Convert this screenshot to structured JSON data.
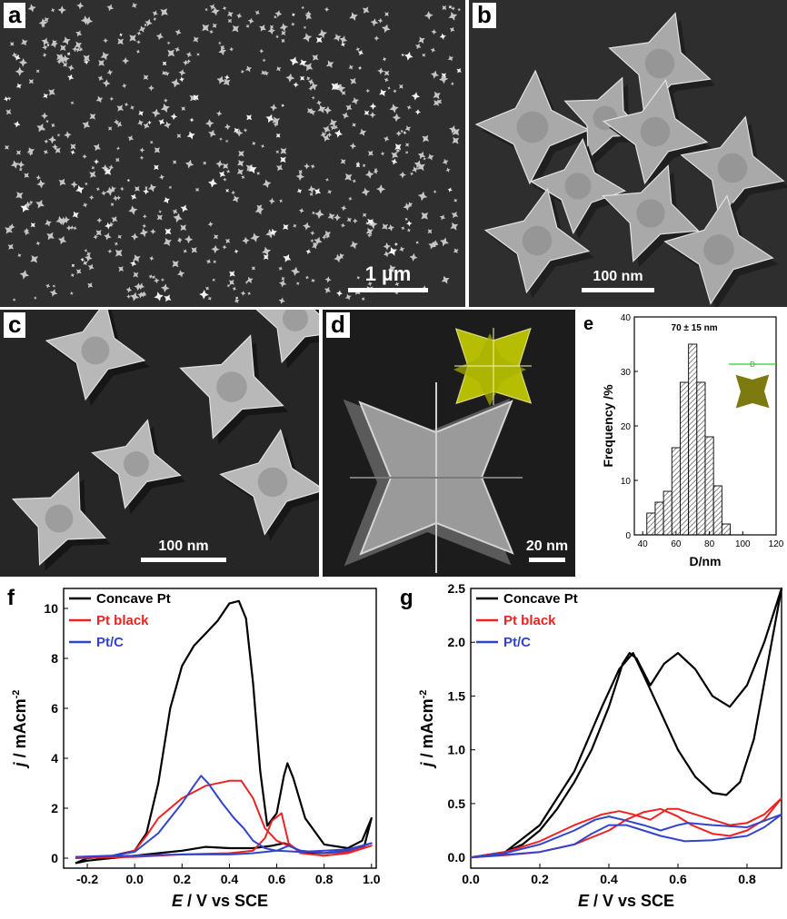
{
  "panels": {
    "a": {
      "letter": "a",
      "scale_label": "1 µm"
    },
    "b": {
      "letter": "b",
      "scale_label": "100 nm"
    },
    "c": {
      "letter": "c",
      "scale_label": "100 nm"
    },
    "d": {
      "letter": "d",
      "scale_label": "20 nm"
    },
    "e": {
      "letter": "e"
    },
    "f": {
      "letter": "f"
    },
    "g": {
      "letter": "g"
    }
  },
  "colors": {
    "sem_background": "#2f2f2f",
    "particle": "#b9b9b9",
    "model_yellow": "#c8d000",
    "inset_olive": "#7d7a10",
    "concave": "#000000",
    "pt_black": "#ee2222",
    "pt_c": "#3344cc"
  },
  "chart_data": [
    {
      "panel": "e",
      "type": "bar",
      "annotation": "70 ± 15 nm",
      "inset_label": "D",
      "xlabel": "D/nm",
      "ylabel": "Frequency /%",
      "xlim": [
        35,
        120
      ],
      "ylim": [
        0,
        40
      ],
      "xticks": [
        40,
        60,
        80,
        100,
        120
      ],
      "yticks": [
        0,
        10,
        20,
        30,
        40
      ],
      "bin_width": 5,
      "x": [
        45,
        50,
        55,
        60,
        65,
        70,
        75,
        80,
        85,
        90
      ],
      "values": [
        4,
        6,
        8,
        16,
        28,
        35,
        28,
        18,
        9,
        2
      ]
    },
    {
      "panel": "f",
      "type": "line",
      "xlabel_italic": "E",
      "xlabel_rest": " / V vs SCE",
      "ylabel_italic": "j",
      "ylabel_rest": " / mAcm",
      "ylabel_sup": "-2",
      "xlim": [
        -0.3,
        1.02
      ],
      "ylim": [
        -0.4,
        10.8
      ],
      "xticks": [
        -0.2,
        0.0,
        0.2,
        0.4,
        0.6,
        0.8,
        1.0
      ],
      "yticks": [
        0,
        2,
        4,
        6,
        8,
        10
      ],
      "legend_position": "top-left",
      "series": [
        {
          "name": "Concave Pt",
          "color": "#000000",
          "points": [
            [
              -0.25,
              -0.2
            ],
            [
              -0.2,
              0.0
            ],
            [
              -0.1,
              0.08
            ],
            [
              0.0,
              0.3
            ],
            [
              0.05,
              1.0
            ],
            [
              0.1,
              3.0
            ],
            [
              0.15,
              6.0
            ],
            [
              0.2,
              7.7
            ],
            [
              0.25,
              8.5
            ],
            [
              0.3,
              9.0
            ],
            [
              0.35,
              9.5
            ],
            [
              0.4,
              10.2
            ],
            [
              0.44,
              10.3
            ],
            [
              0.47,
              9.6
            ],
            [
              0.5,
              7.0
            ],
            [
              0.53,
              3.5
            ],
            [
              0.56,
              1.3
            ],
            [
              0.6,
              1.8
            ],
            [
              0.63,
              3.3
            ],
            [
              0.645,
              3.8
            ],
            [
              0.67,
              3.2
            ],
            [
              0.72,
              1.6
            ],
            [
              0.8,
              0.55
            ],
            [
              0.9,
              0.4
            ],
            [
              0.96,
              0.7
            ],
            [
              1.0,
              1.6
            ],
            [
              0.97,
              0.5
            ],
            [
              0.9,
              0.3
            ],
            [
              0.8,
              0.2
            ],
            [
              0.7,
              0.25
            ],
            [
              0.66,
              0.5
            ],
            [
              0.63,
              0.6
            ],
            [
              0.58,
              0.5
            ],
            [
              0.5,
              0.4
            ],
            [
              0.4,
              0.4
            ],
            [
              0.3,
              0.45
            ],
            [
              0.2,
              0.3
            ],
            [
              0.1,
              0.2
            ],
            [
              0.0,
              0.1
            ],
            [
              -0.1,
              0.0
            ],
            [
              -0.2,
              -0.1
            ],
            [
              -0.25,
              -0.2
            ]
          ]
        },
        {
          "name": "Pt black",
          "color": "#ee2222",
          "points": [
            [
              -0.25,
              0.0
            ],
            [
              -0.1,
              0.05
            ],
            [
              0.0,
              0.3
            ],
            [
              0.05,
              0.9
            ],
            [
              0.1,
              1.6
            ],
            [
              0.2,
              2.4
            ],
            [
              0.3,
              2.9
            ],
            [
              0.4,
              3.1
            ],
            [
              0.45,
              3.1
            ],
            [
              0.5,
              2.4
            ],
            [
              0.55,
              1.2
            ],
            [
              0.6,
              0.7
            ],
            [
              0.7,
              0.3
            ],
            [
              0.8,
              0.2
            ],
            [
              0.9,
              0.25
            ],
            [
              1.0,
              0.5
            ],
            [
              0.9,
              0.2
            ],
            [
              0.8,
              0.1
            ],
            [
              0.7,
              0.2
            ],
            [
              0.65,
              0.6
            ],
            [
              0.62,
              1.8
            ],
            [
              0.58,
              1.5
            ],
            [
              0.55,
              0.8
            ],
            [
              0.5,
              0.3
            ],
            [
              0.4,
              0.2
            ],
            [
              0.2,
              0.15
            ],
            [
              0.0,
              0.05
            ],
            [
              -0.25,
              0.0
            ]
          ]
        },
        {
          "name": "Pt/C",
          "color": "#3344cc",
          "points": [
            [
              -0.25,
              0.05
            ],
            [
              -0.1,
              0.1
            ],
            [
              0.0,
              0.25
            ],
            [
              0.1,
              1.0
            ],
            [
              0.2,
              2.2
            ],
            [
              0.25,
              2.9
            ],
            [
              0.28,
              3.3
            ],
            [
              0.31,
              3.0
            ],
            [
              0.37,
              2.2
            ],
            [
              0.42,
              1.6
            ],
            [
              0.46,
              1.2
            ],
            [
              0.5,
              0.7
            ],
            [
              0.55,
              0.4
            ],
            [
              0.6,
              0.3
            ],
            [
              0.7,
              0.25
            ],
            [
              0.8,
              0.3
            ],
            [
              0.9,
              0.35
            ],
            [
              1.0,
              0.6
            ],
            [
              0.9,
              0.3
            ],
            [
              0.8,
              0.2
            ],
            [
              0.7,
              0.3
            ],
            [
              0.65,
              0.5
            ],
            [
              0.6,
              0.3
            ],
            [
              0.5,
              0.2
            ],
            [
              0.4,
              0.15
            ],
            [
              0.2,
              0.15
            ],
            [
              0.0,
              0.1
            ],
            [
              -0.25,
              0.05
            ]
          ]
        }
      ]
    },
    {
      "panel": "g",
      "type": "line",
      "xlabel_italic": "E",
      "xlabel_rest": " / V vs SCE",
      "ylabel_italic": "j",
      "ylabel_rest": " / mAcm",
      "ylabel_sup": "-2",
      "xlim": [
        0.0,
        0.9
      ],
      "ylim": [
        -0.1,
        2.5
      ],
      "xticks": [
        0.0,
        0.2,
        0.4,
        0.6,
        0.8
      ],
      "xtick_labels": [
        "0.0",
        "0.2",
        "0.4",
        "0.6",
        "0.8"
      ],
      "yticks": [
        0.0,
        0.5,
        1.0,
        1.5,
        2.0,
        2.5
      ],
      "legend_position": "top-left",
      "series": [
        {
          "name": "Concave Pt",
          "color": "#000000",
          "points": [
            [
              0.0,
              0.0
            ],
            [
              0.05,
              0.02
            ],
            [
              0.1,
              0.05
            ],
            [
              0.15,
              0.12
            ],
            [
              0.2,
              0.25
            ],
            [
              0.25,
              0.45
            ],
            [
              0.3,
              0.7
            ],
            [
              0.35,
              1.0
            ],
            [
              0.4,
              1.4
            ],
            [
              0.44,
              1.8
            ],
            [
              0.46,
              1.9
            ],
            [
              0.48,
              1.85
            ],
            [
              0.52,
              1.6
            ],
            [
              0.56,
              1.8
            ],
            [
              0.6,
              1.9
            ],
            [
              0.65,
              1.75
            ],
            [
              0.7,
              1.5
            ],
            [
              0.75,
              1.4
            ],
            [
              0.8,
              1.6
            ],
            [
              0.85,
              2.0
            ],
            [
              0.9,
              2.5
            ],
            [
              0.86,
              1.8
            ],
            [
              0.82,
              1.1
            ],
            [
              0.78,
              0.7
            ],
            [
              0.74,
              0.58
            ],
            [
              0.7,
              0.6
            ],
            [
              0.65,
              0.75
            ],
            [
              0.6,
              1.0
            ],
            [
              0.55,
              1.35
            ],
            [
              0.5,
              1.7
            ],
            [
              0.47,
              1.9
            ],
            [
              0.43,
              1.75
            ],
            [
              0.38,
              1.4
            ],
            [
              0.3,
              0.8
            ],
            [
              0.2,
              0.3
            ],
            [
              0.1,
              0.05
            ],
            [
              0.0,
              0.0
            ]
          ]
        },
        {
          "name": "Pt black",
          "color": "#ee2222",
          "points": [
            [
              0.0,
              0.0
            ],
            [
              0.1,
              0.05
            ],
            [
              0.2,
              0.15
            ],
            [
              0.3,
              0.3
            ],
            [
              0.38,
              0.4
            ],
            [
              0.43,
              0.43
            ],
            [
              0.47,
              0.4
            ],
            [
              0.52,
              0.35
            ],
            [
              0.57,
              0.45
            ],
            [
              0.6,
              0.45
            ],
            [
              0.65,
              0.4
            ],
            [
              0.7,
              0.35
            ],
            [
              0.75,
              0.3
            ],
            [
              0.8,
              0.32
            ],
            [
              0.85,
              0.4
            ],
            [
              0.9,
              0.55
            ],
            [
              0.85,
              0.35
            ],
            [
              0.8,
              0.25
            ],
            [
              0.75,
              0.2
            ],
            [
              0.7,
              0.22
            ],
            [
              0.64,
              0.3
            ],
            [
              0.6,
              0.38
            ],
            [
              0.55,
              0.45
            ],
            [
              0.5,
              0.42
            ],
            [
              0.45,
              0.35
            ],
            [
              0.4,
              0.25
            ],
            [
              0.3,
              0.12
            ],
            [
              0.2,
              0.05
            ],
            [
              0.1,
              0.02
            ],
            [
              0.0,
              0.0
            ]
          ]
        },
        {
          "name": "Pt/C",
          "color": "#3344cc",
          "points": [
            [
              0.0,
              0.0
            ],
            [
              0.1,
              0.04
            ],
            [
              0.2,
              0.12
            ],
            [
              0.3,
              0.25
            ],
            [
              0.36,
              0.35
            ],
            [
              0.4,
              0.38
            ],
            [
              0.44,
              0.35
            ],
            [
              0.5,
              0.3
            ],
            [
              0.55,
              0.25
            ],
            [
              0.6,
              0.3
            ],
            [
              0.63,
              0.32
            ],
            [
              0.7,
              0.3
            ],
            [
              0.8,
              0.28
            ],
            [
              0.9,
              0.4
            ],
            [
              0.85,
              0.28
            ],
            [
              0.8,
              0.2
            ],
            [
              0.7,
              0.16
            ],
            [
              0.62,
              0.15
            ],
            [
              0.55,
              0.2
            ],
            [
              0.5,
              0.25
            ],
            [
              0.45,
              0.3
            ],
            [
              0.4,
              0.3
            ],
            [
              0.35,
              0.22
            ],
            [
              0.3,
              0.12
            ],
            [
              0.2,
              0.05
            ],
            [
              0.0,
              0.0
            ]
          ]
        }
      ]
    }
  ]
}
